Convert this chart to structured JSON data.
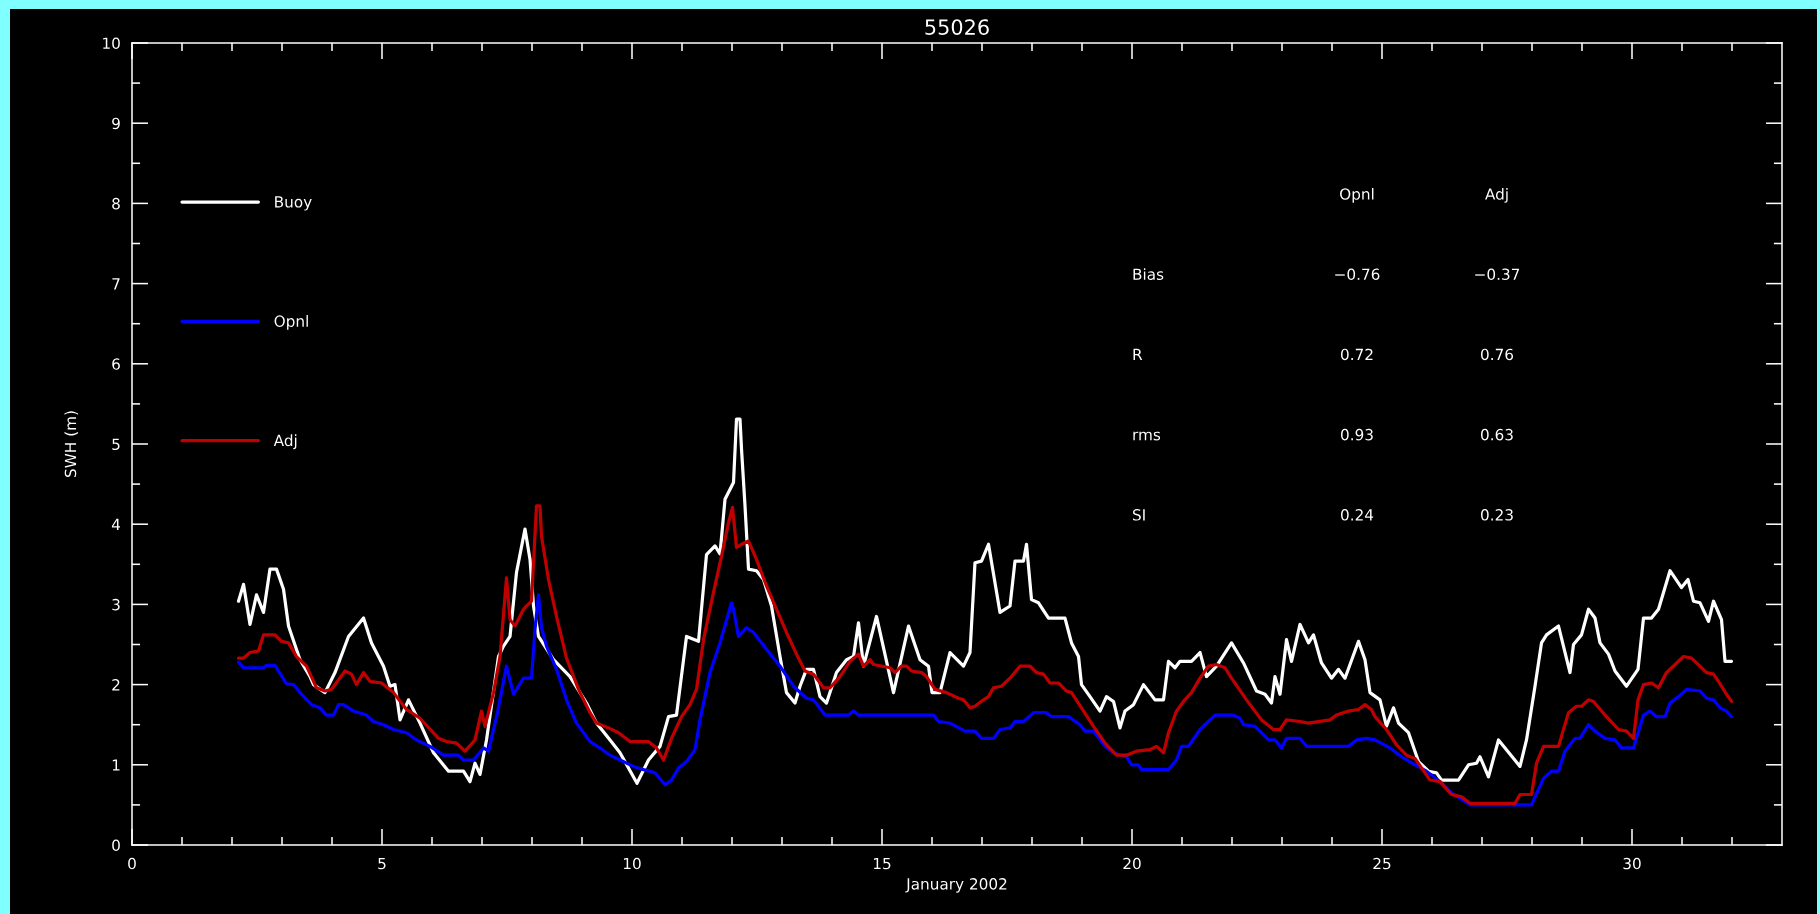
{
  "chart_data": {
    "type": "line",
    "title": "55026",
    "xlabel": "January 2002",
    "ylabel": "SWH (m)",
    "xlim": [
      0,
      33
    ],
    "ylim": [
      0,
      10
    ],
    "xticks": [
      0,
      {
        "value": 1,
        "label": null
      },
      {
        "value": 2,
        "label": null
      },
      {
        "value": 3,
        "label": null
      },
      {
        "value": 4,
        "label": null
      },
      5,
      {
        "value": 6,
        "label": null
      },
      {
        "value": 7,
        "label": null
      },
      {
        "value": 8,
        "label": null
      },
      {
        "value": 9,
        "label": null
      },
      10,
      {
        "value": 11,
        "label": null
      },
      {
        "value": 12,
        "label": null
      },
      {
        "value": 13,
        "label": null
      },
      {
        "value": 14,
        "label": null
      },
      15,
      {
        "value": 16,
        "label": null
      },
      {
        "value": 17,
        "label": null
      },
      {
        "value": 18,
        "label": null
      },
      {
        "value": 19,
        "label": null
      },
      20,
      {
        "value": 21,
        "label": null
      },
      {
        "value": 22,
        "label": null
      },
      {
        "value": 23,
        "label": null
      },
      {
        "value": 24,
        "label": null
      },
      25,
      {
        "value": 26,
        "label": null
      },
      {
        "value": 27,
        "label": null
      },
      {
        "value": 28,
        "label": null
      },
      {
        "value": 29,
        "label": null
      },
      30,
      {
        "value": 31,
        "label": null
      },
      {
        "value": 32,
        "label": null
      }
    ],
    "yticks": [
      0,
      {
        "value": 0.5,
        "label": null
      },
      1,
      {
        "value": 1.5,
        "label": null
      },
      2,
      {
        "value": 2.5,
        "label": null
      },
      3,
      {
        "value": 3.5,
        "label": null
      },
      4,
      {
        "value": 4.5,
        "label": null
      },
      5,
      {
        "value": 5.5,
        "label": null
      },
      6,
      {
        "value": 6.5,
        "label": null
      },
      7,
      {
        "value": 7.5,
        "label": null
      },
      8,
      {
        "value": 8.5,
        "label": null
      },
      9,
      {
        "value": 9.5,
        "label": null
      },
      10
    ],
    "legend": "top left",
    "annotations": [
      "Opnl",
      "Adj",
      "Bias",
      "−0.76",
      "−0.37",
      "R",
      "0.72",
      "0.76",
      "rms",
      "0.93",
      "0.63",
      "SI",
      "0.24",
      "0.23"
    ],
    "series": [
      {
        "name": "Buoy",
        "color": "#ffffff",
        "x": [
          2.13,
          2.23,
          2.36,
          2.49,
          2.63,
          2.76,
          2.89,
          3.03,
          3.13,
          3.36,
          3.56,
          3.63,
          3.86,
          4.06,
          4.33,
          4.63,
          4.79,
          5.03,
          5.16,
          5.26,
          5.36,
          5.53,
          5.76,
          6.03,
          6.33,
          6.63,
          6.76,
          6.86,
          6.96,
          7.09,
          7.33,
          7.43,
          7.56,
          7.69,
          7.86,
          7.96,
          8.03,
          8.13,
          8.43,
          8.76,
          9.09,
          9.29,
          9.56,
          9.76,
          10.1,
          10.33,
          10.56,
          10.73,
          10.89,
          11.09,
          11.33,
          11.49,
          11.66,
          11.76,
          11.86,
          12.03,
          12.09,
          12.16,
          12.19,
          12.26,
          12.33,
          12.49,
          12.63,
          12.79,
          12.96,
          13.09,
          13.26,
          13.36,
          13.49,
          13.63,
          13.76,
          13.89,
          14.09,
          14.29,
          14.43,
          14.53,
          14.63,
          14.89,
          15.23,
          15.53,
          15.76,
          15.93,
          16.0,
          16.16,
          16.36,
          16.63,
          16.76,
          16.86,
          16.99,
          17.13,
          17.36,
          17.56,
          17.66,
          17.83,
          17.89,
          17.99,
          18.13,
          18.33,
          18.66,
          18.79,
          18.93,
          18.99,
          19.16,
          19.36,
          19.49,
          19.63,
          19.76,
          19.86,
          20.03,
          20.23,
          20.46,
          20.63,
          20.73,
          20.86,
          20.96,
          21.19,
          21.36,
          21.49,
          21.69,
          21.99,
          22.23,
          22.49,
          22.66,
          22.79,
          22.86,
          22.96,
          23.09,
          23.19,
          23.36,
          23.53,
          23.63,
          23.79,
          23.99,
          24.13,
          24.26,
          24.53,
          24.66,
          24.76,
          24.96,
          25.09,
          25.23,
          25.33,
          25.53,
          25.73,
          25.93,
          26.09,
          26.19,
          26.53,
          26.73,
          26.89,
          26.96,
          27.13,
          27.33,
          27.76,
          27.89,
          28.06,
          28.19,
          28.29,
          28.53,
          28.76,
          28.83,
          28.99,
          29.13,
          29.26,
          29.36,
          29.53,
          29.66,
          29.89,
          30.12,
          30.23,
          30.39,
          30.53,
          30.76,
          30.99,
          31.12,
          31.23,
          31.36,
          31.53,
          31.63,
          31.79,
          31.86,
          31.99
        ],
        "values": [
          3.04,
          3.25,
          2.75,
          3.12,
          2.9,
          3.44,
          3.44,
          3.19,
          2.73,
          2.31,
          2.1,
          2.0,
          1.9,
          2.15,
          2.6,
          2.83,
          2.52,
          2.23,
          1.98,
          2.0,
          1.56,
          1.81,
          1.52,
          1.15,
          0.92,
          0.92,
          0.79,
          1.02,
          0.88,
          1.31,
          2.35,
          2.48,
          2.6,
          3.4,
          3.94,
          3.56,
          2.98,
          2.6,
          2.31,
          2.1,
          1.77,
          1.52,
          1.31,
          1.15,
          0.77,
          1.06,
          1.23,
          1.6,
          1.62,
          2.6,
          2.54,
          3.62,
          3.73,
          3.63,
          4.31,
          4.52,
          5.31,
          5.31,
          4.94,
          4.23,
          3.44,
          3.42,
          3.31,
          2.98,
          2.35,
          1.9,
          1.77,
          1.98,
          2.19,
          2.19,
          1.85,
          1.77,
          2.15,
          2.31,
          2.35,
          2.77,
          2.23,
          2.85,
          1.9,
          2.73,
          2.31,
          2.23,
          1.9,
          1.9,
          2.4,
          2.23,
          2.4,
          3.52,
          3.54,
          3.75,
          2.9,
          2.98,
          3.54,
          3.54,
          3.75,
          3.06,
          3.02,
          2.83,
          2.83,
          2.52,
          2.35,
          2.0,
          1.85,
          1.67,
          1.85,
          1.79,
          1.46,
          1.67,
          1.75,
          2.0,
          1.81,
          1.81,
          2.29,
          2.21,
          2.29,
          2.29,
          2.4,
          2.1,
          2.23,
          2.52,
          2.27,
          1.92,
          1.88,
          1.77,
          2.1,
          1.88,
          2.56,
          2.29,
          2.75,
          2.52,
          2.62,
          2.27,
          2.08,
          2.19,
          2.08,
          2.54,
          2.31,
          1.9,
          1.81,
          1.48,
          1.71,
          1.52,
          1.4,
          1.04,
          0.92,
          0.9,
          0.81,
          0.81,
          1.0,
          1.02,
          1.1,
          0.85,
          1.31,
          0.98,
          1.31,
          1.98,
          2.52,
          2.62,
          2.73,
          2.15,
          2.5,
          2.62,
          2.94,
          2.83,
          2.52,
          2.38,
          2.17,
          1.98,
          2.19,
          2.83,
          2.83,
          2.94,
          3.42,
          3.21,
          3.31,
          3.04,
          3.02,
          2.79,
          3.04,
          2.81,
          2.29,
          2.29
        ]
      },
      {
        "name": "Opnl",
        "color": "#0000ff",
        "x": [
          2.13,
          2.23,
          2.63,
          2.69,
          2.86,
          3.09,
          3.23,
          3.39,
          3.59,
          3.76,
          3.89,
          4.03,
          4.13,
          4.23,
          4.43,
          4.69,
          4.83,
          5.03,
          5.23,
          5.49,
          5.69,
          5.96,
          6.23,
          6.53,
          6.63,
          6.83,
          7.03,
          7.13,
          7.31,
          7.49,
          7.63,
          7.83,
          7.99,
          8.06,
          8.13,
          8.19,
          8.29,
          8.49,
          8.69,
          8.89,
          9.16,
          9.36,
          9.56,
          9.76,
          10.03,
          10.23,
          10.46,
          10.66,
          10.79,
          10.93,
          11.09,
          11.26,
          11.36,
          11.56,
          11.76,
          11.99,
          12.03,
          12.13,
          12.29,
          12.43,
          12.69,
          12.96,
          13.23,
          13.49,
          13.63,
          13.86,
          14.33,
          14.43,
          14.53,
          16.03,
          16.13,
          16.36,
          16.66,
          16.86,
          16.99,
          17.23,
          17.36,
          17.56,
          17.66,
          17.83,
          18.03,
          18.29,
          18.39,
          18.73,
          18.96,
          19.06,
          19.23,
          19.46,
          19.63,
          19.76,
          19.89,
          19.99,
          20.13,
          20.19,
          20.73,
          20.89,
          20.99,
          21.13,
          21.36,
          21.66,
          22.03,
          22.16,
          22.23,
          22.46,
          22.73,
          22.86,
          22.99,
          23.09,
          23.36,
          23.49,
          24.33,
          24.49,
          24.69,
          24.86,
          25.16,
          25.39,
          25.66,
          25.89,
          26.16,
          26.39,
          26.76,
          27.99,
          28.23,
          28.39,
          28.53,
          28.66,
          28.86,
          28.96,
          29.13,
          29.26,
          29.46,
          29.66,
          29.79,
          30.03,
          30.23,
          30.36,
          30.49,
          30.66,
          30.76,
          30.93,
          31.09,
          31.36,
          31.49,
          31.63,
          31.76,
          31.89,
          31.99
        ],
        "values": [
          2.28,
          2.21,
          2.21,
          2.24,
          2.24,
          2.01,
          2.0,
          1.88,
          1.75,
          1.71,
          1.62,
          1.62,
          1.75,
          1.75,
          1.67,
          1.62,
          1.54,
          1.5,
          1.44,
          1.4,
          1.31,
          1.23,
          1.12,
          1.12,
          1.06,
          1.06,
          1.21,
          1.17,
          1.65,
          2.23,
          1.88,
          2.08,
          2.08,
          2.69,
          3.12,
          2.71,
          2.48,
          2.19,
          1.81,
          1.52,
          1.29,
          1.21,
          1.12,
          1.06,
          0.98,
          0.94,
          0.9,
          0.75,
          0.81,
          0.96,
          1.04,
          1.19,
          1.56,
          2.15,
          2.52,
          3.02,
          2.94,
          2.6,
          2.71,
          2.65,
          2.44,
          2.23,
          1.98,
          1.83,
          1.81,
          1.62,
          1.62,
          1.67,
          1.62,
          1.62,
          1.54,
          1.52,
          1.42,
          1.42,
          1.33,
          1.33,
          1.44,
          1.46,
          1.54,
          1.54,
          1.65,
          1.65,
          1.6,
          1.6,
          1.5,
          1.42,
          1.42,
          1.23,
          1.15,
          1.12,
          1.1,
          1.0,
          1.0,
          0.94,
          0.94,
          1.06,
          1.23,
          1.23,
          1.44,
          1.62,
          1.62,
          1.58,
          1.5,
          1.48,
          1.31,
          1.31,
          1.21,
          1.33,
          1.33,
          1.23,
          1.23,
          1.31,
          1.33,
          1.31,
          1.21,
          1.1,
          1.0,
          0.92,
          0.79,
          0.65,
          0.5,
          0.5,
          0.83,
          0.92,
          0.92,
          1.17,
          1.33,
          1.33,
          1.5,
          1.42,
          1.33,
          1.31,
          1.21,
          1.21,
          1.62,
          1.67,
          1.6,
          1.6,
          1.77,
          1.85,
          1.94,
          1.92,
          1.83,
          1.81,
          1.71,
          1.67,
          1.6
        ]
      },
      {
        "name": "Adj",
        "color": "#c00000",
        "x": [
          2.13,
          2.23,
          2.36,
          2.53,
          2.63,
          2.86,
          2.99,
          3.13,
          3.29,
          3.49,
          3.69,
          3.86,
          3.99,
          4.26,
          4.39,
          4.49,
          4.63,
          4.76,
          4.99,
          5.23,
          5.49,
          5.76,
          6.13,
          6.29,
          6.49,
          6.66,
          6.86,
          6.99,
          7.06,
          7.23,
          7.36,
          7.49,
          7.56,
          7.66,
          7.83,
          7.99,
          8.09,
          8.16,
          8.19,
          8.33,
          8.49,
          8.69,
          8.93,
          9.16,
          9.29,
          9.53,
          9.73,
          9.96,
          10.33,
          10.49,
          10.63,
          10.79,
          10.99,
          11.16,
          11.29,
          11.43,
          11.63,
          11.79,
          11.93,
          12.01,
          12.09,
          12.19,
          12.33,
          12.49,
          12.69,
          12.89,
          13.09,
          13.29,
          13.46,
          13.63,
          13.83,
          13.96,
          14.16,
          14.36,
          14.53,
          14.63,
          14.76,
          14.83,
          15.16,
          15.26,
          15.39,
          15.49,
          15.59,
          15.79,
          15.89,
          16.06,
          16.29,
          16.53,
          16.63,
          16.76,
          16.86,
          17.03,
          17.13,
          17.23,
          17.39,
          17.56,
          17.76,
          17.96,
          18.09,
          18.23,
          18.36,
          18.53,
          18.69,
          18.79,
          19.23,
          19.46,
          19.69,
          19.89,
          20.09,
          20.36,
          20.49,
          20.63,
          20.73,
          20.89,
          21.03,
          21.19,
          21.36,
          21.53,
          21.69,
          21.86,
          21.99,
          22.29,
          22.59,
          22.83,
          22.96,
          23.09,
          23.36,
          23.53,
          23.96,
          24.09,
          24.33,
          24.53,
          24.66,
          24.79,
          24.86,
          25.09,
          25.29,
          25.49,
          25.66,
          25.96,
          26.16,
          26.39,
          26.59,
          26.76,
          27.66,
          27.76,
          27.99,
          28.09,
          28.23,
          28.53,
          28.73,
          28.89,
          28.99,
          29.13,
          29.23,
          29.49,
          29.73,
          29.89,
          30.03,
          30.12,
          30.23,
          30.39,
          30.53,
          30.69,
          31.03,
          31.19,
          31.29,
          31.49,
          31.63,
          31.73,
          31.89,
          31.99
        ],
        "values": [
          2.33,
          2.33,
          2.4,
          2.42,
          2.62,
          2.62,
          2.54,
          2.52,
          2.35,
          2.23,
          1.96,
          1.92,
          1.94,
          2.17,
          2.13,
          2.0,
          2.15,
          2.04,
          2.02,
          1.9,
          1.69,
          1.58,
          1.33,
          1.29,
          1.27,
          1.17,
          1.31,
          1.67,
          1.48,
          1.9,
          2.35,
          3.33,
          2.81,
          2.73,
          2.94,
          3.04,
          4.23,
          4.23,
          3.85,
          3.31,
          2.85,
          2.33,
          1.94,
          1.65,
          1.52,
          1.46,
          1.4,
          1.29,
          1.29,
          1.21,
          1.06,
          1.33,
          1.6,
          1.75,
          1.94,
          2.56,
          3.15,
          3.6,
          4.02,
          4.21,
          3.71,
          3.75,
          3.79,
          3.56,
          3.23,
          2.94,
          2.65,
          2.38,
          2.17,
          2.13,
          1.96,
          1.96,
          2.1,
          2.29,
          2.38,
          2.23,
          2.31,
          2.25,
          2.21,
          2.15,
          2.23,
          2.23,
          2.17,
          2.15,
          2.1,
          1.94,
          1.9,
          1.83,
          1.81,
          1.71,
          1.73,
          1.81,
          1.85,
          1.96,
          1.98,
          2.08,
          2.23,
          2.23,
          2.15,
          2.13,
          2.02,
          2.02,
          1.92,
          1.9,
          1.48,
          1.27,
          1.12,
          1.12,
          1.17,
          1.19,
          1.23,
          1.15,
          1.4,
          1.67,
          1.79,
          1.9,
          2.08,
          2.23,
          2.25,
          2.21,
          2.08,
          1.81,
          1.56,
          1.44,
          1.44,
          1.56,
          1.54,
          1.52,
          1.56,
          1.62,
          1.67,
          1.69,
          1.75,
          1.69,
          1.6,
          1.44,
          1.25,
          1.12,
          1.08,
          0.81,
          0.79,
          0.63,
          0.6,
          0.52,
          0.52,
          0.63,
          0.63,
          1.02,
          1.23,
          1.23,
          1.65,
          1.73,
          1.73,
          1.81,
          1.79,
          1.6,
          1.44,
          1.42,
          1.33,
          1.81,
          2.0,
          2.02,
          1.96,
          2.15,
          2.35,
          2.33,
          2.27,
          2.15,
          2.13,
          2.04,
          1.88,
          1.79
        ]
      }
    ]
  }
}
